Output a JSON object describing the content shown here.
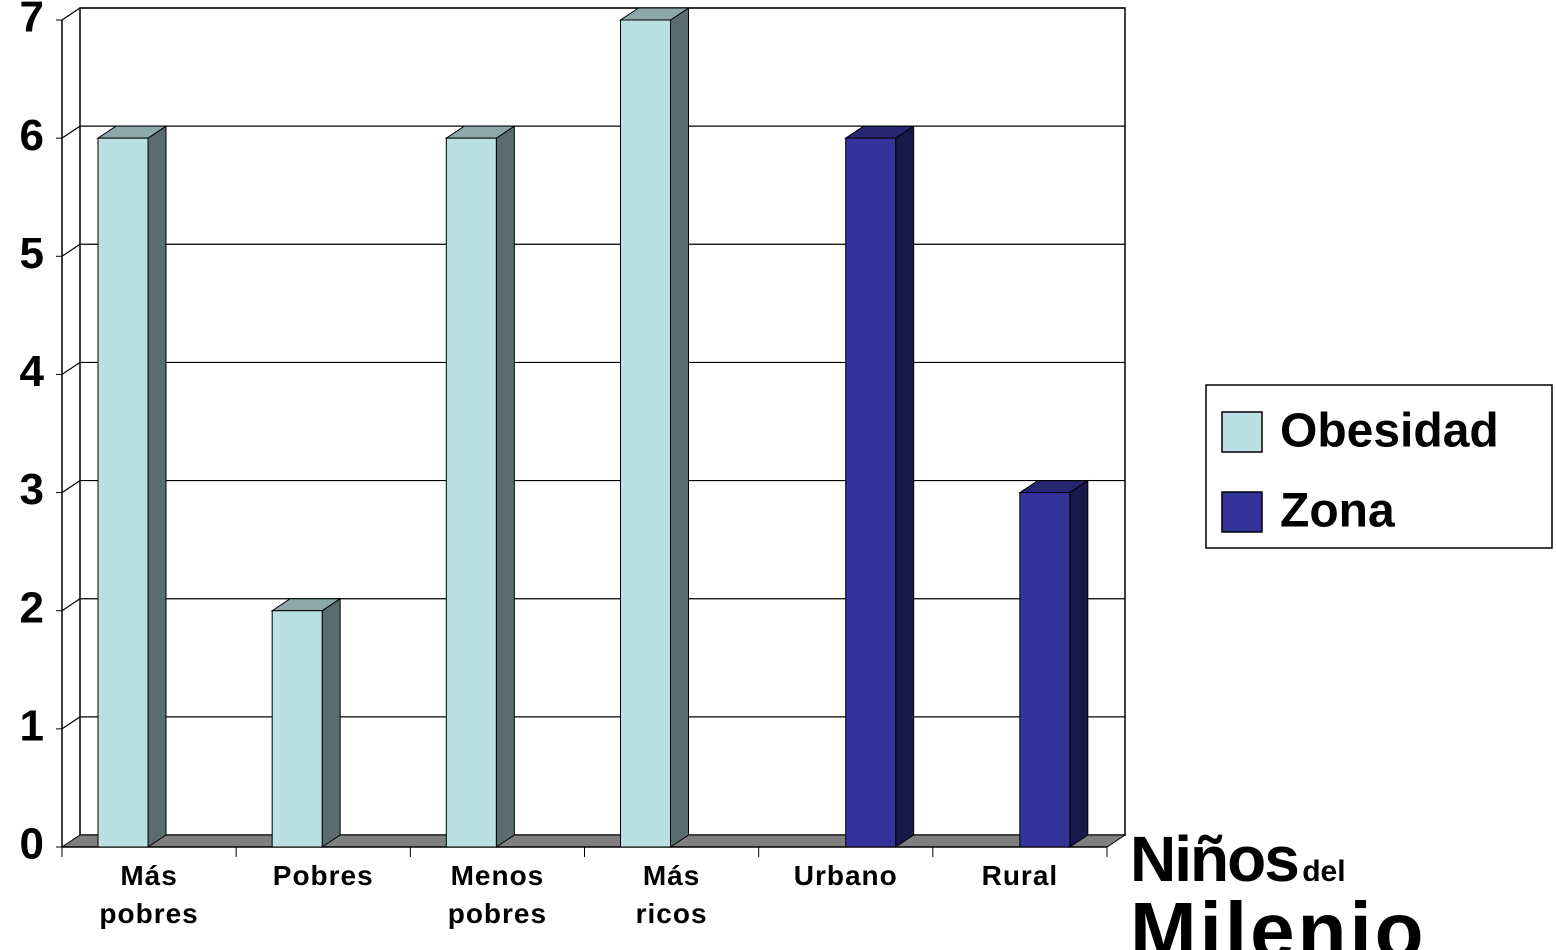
{
  "chart_data": {
    "type": "bar3d",
    "categories": [
      "Más pobres",
      "Pobres",
      "Menos pobres",
      "Más ricos",
      "Urbano",
      "Rural"
    ],
    "series": [
      {
        "name": "Obesidad",
        "color": "#bbe0e3",
        "values": [
          6,
          2,
          6,
          7,
          null,
          null
        ]
      },
      {
        "name": "Zona",
        "color": "#333399",
        "values": [
          null,
          null,
          null,
          null,
          6,
          3
        ]
      }
    ],
    "ylim": [
      0,
      7
    ],
    "yticks": [
      0,
      1,
      2,
      3,
      4,
      5,
      6,
      7
    ],
    "grid": true,
    "legend": "right"
  },
  "logo": {
    "name": "Niños",
    "small": "del",
    "second": "Milenio"
  }
}
